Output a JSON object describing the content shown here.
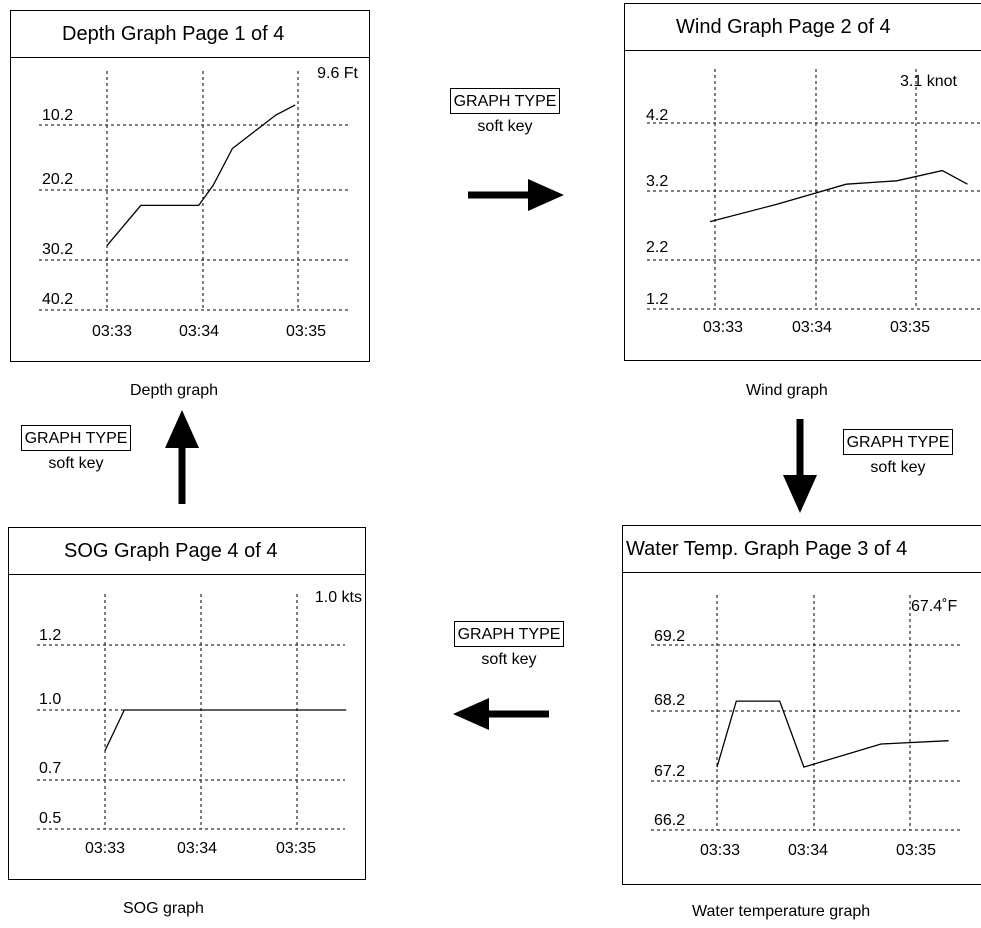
{
  "panels": [
    {
      "id": "depth",
      "title": "Depth Graph  Page 1 of 4",
      "value_readout": "9.6 Ft",
      "y_labels": [
        "10.2",
        "20.2",
        "30.2",
        "40.2"
      ],
      "x_labels": [
        "03:33",
        "03:34",
        "03:35"
      ],
      "caption": "Depth graph",
      "series": [
        [
          0.0,
          28.0
        ],
        [
          0.35,
          22.0
        ],
        [
          0.95,
          22.0
        ],
        [
          1.1,
          19.0
        ],
        [
          1.3,
          13.5
        ],
        [
          1.75,
          8.5
        ],
        [
          1.95,
          7.0
        ]
      ]
    },
    {
      "id": "wind",
      "title": "Wind Graph  Page 2 of 4",
      "value_readout": "3.1 knot",
      "y_labels": [
        "4.2",
        "3.2",
        "2.2",
        "1.2"
      ],
      "x_labels": [
        "03:33",
        "03:34",
        "03:35"
      ],
      "caption": "Wind graph",
      "series": [
        [
          -0.05,
          2.75
        ],
        [
          0.6,
          3.0
        ],
        [
          1.3,
          3.3
        ],
        [
          1.8,
          3.35
        ],
        [
          2.25,
          3.5
        ],
        [
          2.5,
          3.3
        ]
      ]
    },
    {
      "id": "water-temp",
      "title": "Water Temp. Graph  Page 3 of 4",
      "value_readout": "67.4˚F",
      "y_labels": [
        "69.2",
        "68.2",
        "67.2",
        "66.2"
      ],
      "x_labels": [
        "03:33",
        "03:34",
        "03:35"
      ],
      "caption": "Water temperature graph",
      "series": [
        [
          0.0,
          67.35
        ],
        [
          0.2,
          68.35
        ],
        [
          0.65,
          68.35
        ],
        [
          0.9,
          67.35
        ],
        [
          1.7,
          67.7
        ],
        [
          2.4,
          67.75
        ]
      ]
    },
    {
      "id": "sog",
      "title": "SOG Graph  Page 4 of 4",
      "value_readout": "1.0 kts",
      "y_labels": [
        "1.2",
        "1.0",
        "0.7",
        "0.5"
      ],
      "x_labels": [
        "03:33",
        "03:34",
        "03:35"
      ],
      "caption": "SOG graph",
      "series": [
        [
          0.0,
          0.875
        ],
        [
          0.2,
          1.0
        ],
        [
          2.5,
          1.0
        ]
      ]
    }
  ],
  "soft_keys": [
    {
      "label": "GRAPH TYPE",
      "sub": "soft key"
    },
    {
      "label": "GRAPH TYPE",
      "sub": "soft key"
    },
    {
      "label": "GRAPH TYPE",
      "sub": "soft key"
    },
    {
      "label": "GRAPH TYPE",
      "sub": "soft key"
    }
  ],
  "chart_data": [
    {
      "type": "line",
      "title": "Depth Graph  Page 1 of 4",
      "x": [
        "03:33",
        "03:34",
        "03:35"
      ],
      "ylim_labels": [
        "10.2",
        "20.2",
        "30.2",
        "40.2"
      ],
      "y_inverted": true,
      "grid": true
    },
    {
      "type": "line",
      "title": "Wind Graph  Page 2 of 4",
      "x": [
        "03:33",
        "03:34",
        "03:35"
      ],
      "ylim_labels": [
        "4.2",
        "3.2",
        "2.2",
        "1.2"
      ],
      "grid": true
    },
    {
      "type": "line",
      "title": "Water Temp. Graph  Page 3 of 4",
      "x": [
        "03:33",
        "03:34",
        "03:35"
      ],
      "ylim_labels": [
        "69.2",
        "68.2",
        "67.2",
        "66.2"
      ],
      "grid": true
    },
    {
      "type": "line",
      "title": "SOG Graph  Page 4 of 4",
      "x": [
        "03:33",
        "03:34",
        "03:35"
      ],
      "ylim_labels": [
        "1.2",
        "1.0",
        "0.7",
        "0.5"
      ],
      "grid": true
    }
  ]
}
